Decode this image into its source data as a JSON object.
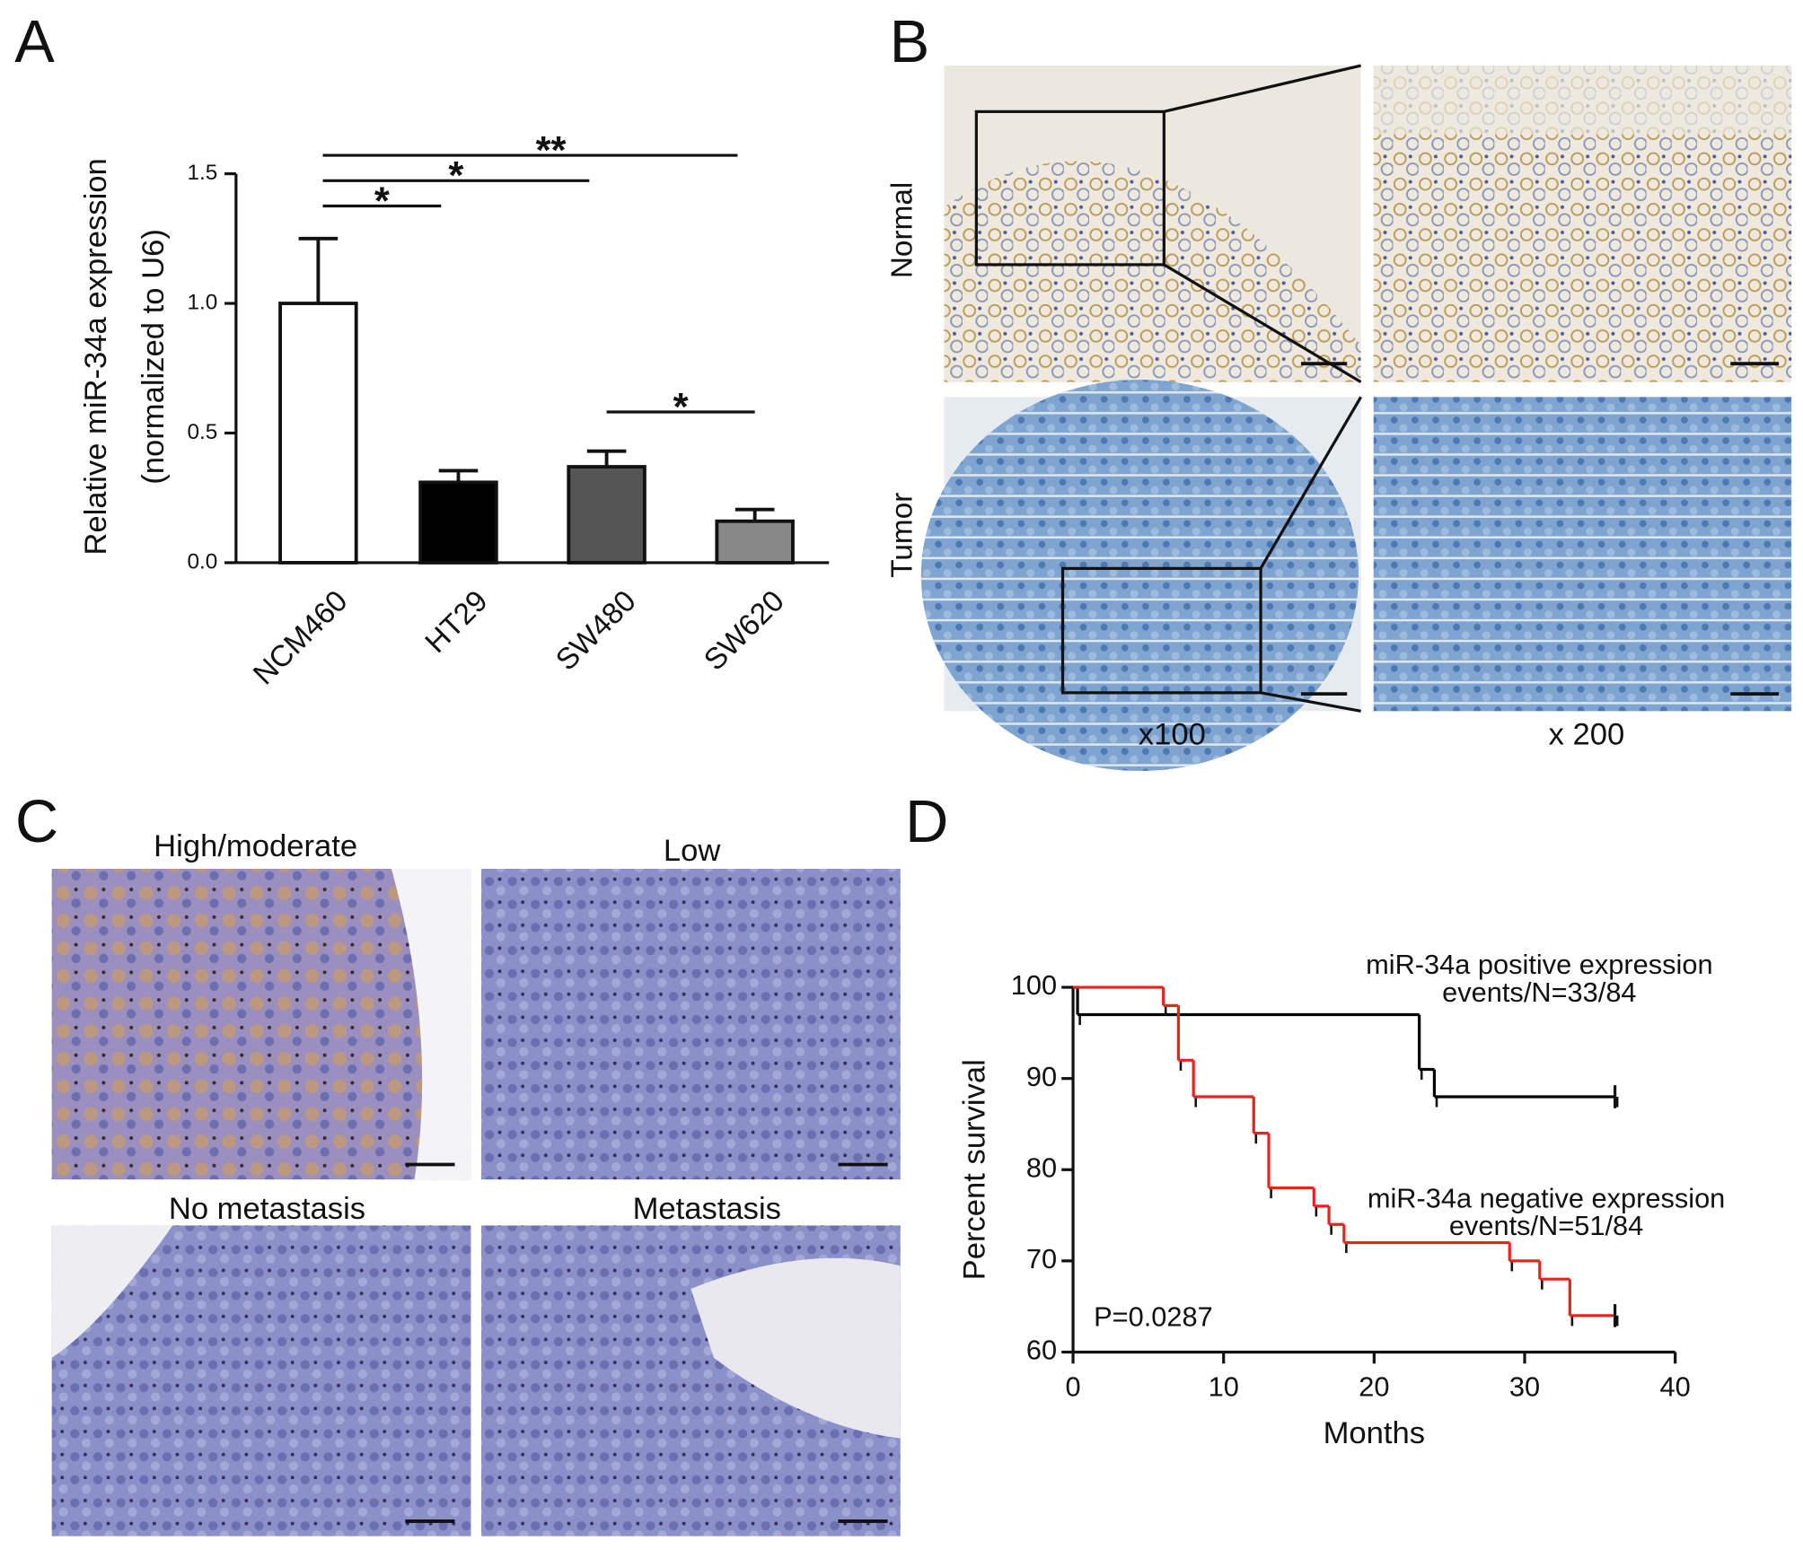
{
  "panels": {
    "letters": [
      "A",
      "B",
      "C",
      "D"
    ],
    "B": {
      "rows": [
        "Normal",
        "Tumor"
      ],
      "columns": [
        "x100",
        "x 200"
      ]
    },
    "C": {
      "titles": [
        "High/moderate",
        "Low",
        "No metastasis",
        "Metastasis"
      ]
    }
  },
  "chart_data": [
    {
      "type": "bar",
      "ylabel": [
        "Relative miR-34a expression",
        "(normalized to U6)"
      ],
      "categories": [
        "NCM460",
        "HT29",
        "SW480",
        "SW620"
      ],
      "values": [
        1.0,
        0.31,
        0.37,
        0.16
      ],
      "errors": [
        0.25,
        0.045,
        0.06,
        0.045
      ],
      "colors": [
        "#ffffff",
        "#000000",
        "#555555",
        "#888888"
      ],
      "ylim": [
        0,
        1.5
      ],
      "yticks": [
        {
          "value": 0,
          "label": "0.0"
        },
        {
          "value": 0.5,
          "label": "0.5"
        },
        {
          "value": 1,
          "label": "1.0"
        },
        {
          "value": 1.5,
          "label": "1.5"
        }
      ],
      "comparisons": [
        {
          "groups": [
            "NCM460",
            "SW620"
          ],
          "label": "**"
        },
        {
          "groups": [
            "NCM460",
            "SW480"
          ],
          "label": "*"
        },
        {
          "groups": [
            "NCM460",
            "HT29"
          ],
          "label": "*"
        },
        {
          "groups": [
            "SW480",
            "SW620"
          ],
          "label": "*"
        }
      ]
    },
    {
      "type": "line",
      "step": true,
      "xlabel": "Months",
      "ylabel": "Percent survival",
      "xlim": [
        0,
        40
      ],
      "xticks": [
        0,
        10,
        20,
        30,
        40
      ],
      "ylim": [
        60,
        100
      ],
      "yticks": [
        60,
        70,
        80,
        90,
        100
      ],
      "series": [
        {
          "name": "miR-34a positive expression",
          "events": "events/N=33/84",
          "color": "#000000",
          "x": [
            0,
            0.3,
            23,
            24,
            36
          ],
          "values": [
            100,
            97,
            91,
            88,
            88
          ]
        },
        {
          "name": "miR-34a negative expression",
          "events": "events/N=51/84",
          "color": "#e8231f",
          "x": [
            0,
            6,
            7,
            8,
            12,
            13,
            16,
            17,
            18,
            29,
            31,
            33,
            36
          ],
          "values": [
            100,
            98,
            92,
            88,
            84,
            78,
            76,
            74,
            72,
            70,
            68,
            64,
            64
          ]
        }
      ],
      "annotation": "P=0.0287"
    }
  ]
}
